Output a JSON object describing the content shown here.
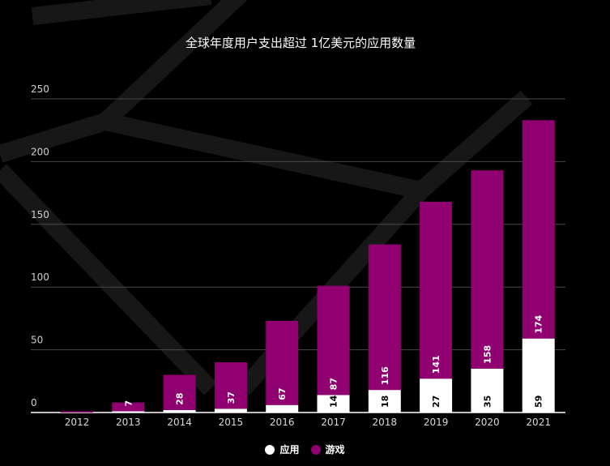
{
  "chart_data": {
    "type": "bar",
    "stacked": true,
    "title": "全球年度用户支出超过 1亿美元的应用数量",
    "categories": [
      "2012",
      "2013",
      "2014",
      "2015",
      "2016",
      "2017",
      "2018",
      "2019",
      "2020",
      "2021"
    ],
    "series": [
      {
        "name": "应用",
        "color": "#ffffff",
        "label_color": "#000000",
        "values": [
          0,
          1,
          2,
          3,
          6,
          14,
          18,
          27,
          35,
          59
        ],
        "labels": [
          "",
          "",
          "",
          "",
          "",
          "14",
          "18",
          "27",
          "35",
          "59"
        ]
      },
      {
        "name": "游戏",
        "color": "#910070",
        "label_color": "#ffffff",
        "values": [
          1,
          7,
          28,
          37,
          67,
          87,
          116,
          141,
          158,
          174
        ],
        "labels": [
          "",
          "7",
          "28",
          "37",
          "67",
          "87",
          "116",
          "141",
          "158",
          "174"
        ]
      }
    ],
    "ylim": [
      0,
      250
    ],
    "yticks": [
      0,
      50,
      100,
      150,
      200,
      250
    ],
    "grid": true,
    "legend_position": "bottom-center"
  },
  "colors": {
    "background": "#000000",
    "games": "#910070",
    "apps": "#ffffff",
    "grid": "#4a4a4a"
  }
}
